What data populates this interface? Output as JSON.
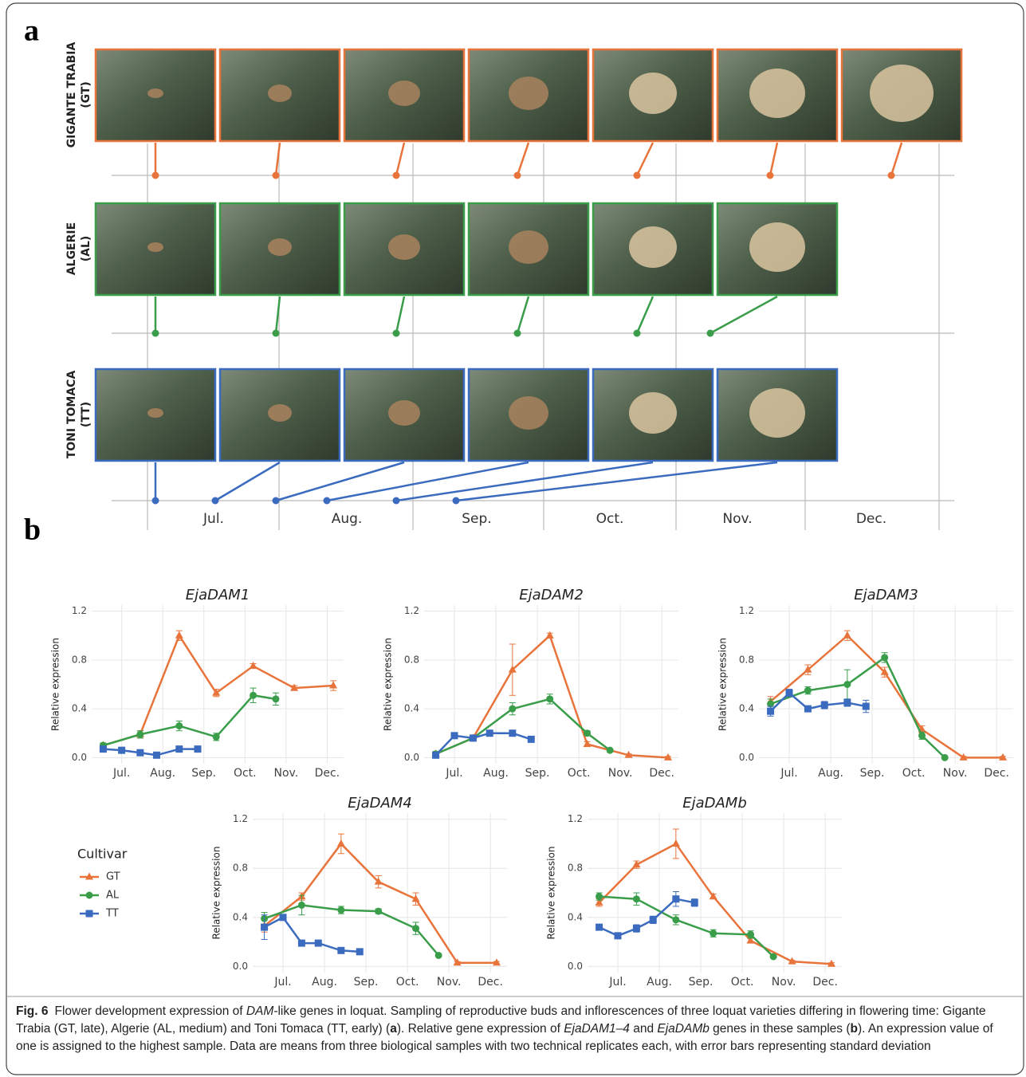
{
  "panel_a": {
    "label": "a",
    "rows": [
      {
        "name": "GIGANTE TRABIA",
        "code": "(GT)"
      },
      {
        "name": "ALGERIE",
        "code": "(AL)"
      },
      {
        "name": "TONI TOMACA",
        "code": "(TT)"
      }
    ],
    "months": [
      "Jul.",
      "Aug.",
      "Sep.",
      "Oct.",
      "Nov.",
      "Dec."
    ]
  },
  "panel_b": {
    "label": "b"
  },
  "legend": {
    "title": "Cultivar",
    "entries": [
      {
        "name": "GT",
        "color": "#e8743b",
        "marker": "triangle"
      },
      {
        "name": "AL",
        "color": "#3a9d4a",
        "marker": "circle"
      },
      {
        "name": "TT",
        "color": "#3b6bbf",
        "marker": "square"
      }
    ]
  },
  "chart_data": [
    {
      "type": "line",
      "title": "EjaDAM1",
      "y_label": "Relative expression",
      "xlim": [
        6.27,
        12.4
      ],
      "ylim": [
        -0.05,
        1.25
      ],
      "xticks": [
        {
          "value": 7,
          "label": "Jul."
        },
        {
          "value": 8,
          "label": "Aug."
        },
        {
          "value": 9,
          "label": "Sep."
        },
        {
          "value": 10,
          "label": "Oct."
        },
        {
          "value": 11,
          "label": "Nov."
        },
        {
          "value": 12,
          "label": "Dec."
        }
      ],
      "yticks": [
        {
          "value": 0,
          "label": "0.0"
        },
        0.4,
        0.8,
        1.2
      ],
      "grid": true,
      "series": [
        {
          "x": [
            6.55,
            7.45,
            8.4,
            9.3,
            10.2,
            11.2,
            12.15
          ],
          "values": [
            0.1,
            0.19,
            1.0,
            0.53,
            0.75,
            0.57,
            0.59
          ],
          "errors": [
            0.02,
            0.03,
            0.04,
            0.03,
            0.02,
            0.02,
            0.04
          ]
        },
        {
          "x": [
            6.55,
            7.45,
            8.4,
            9.3,
            10.2,
            10.75
          ],
          "values": [
            0.1,
            0.19,
            0.26,
            0.17,
            0.51,
            0.48
          ],
          "errors": [
            0.02,
            0.03,
            0.04,
            0.03,
            0.06,
            0.05
          ]
        },
        {
          "x": [
            6.55,
            7.0,
            7.45,
            7.85,
            8.4,
            8.85
          ],
          "values": [
            0.07,
            0.06,
            0.04,
            0.02,
            0.07,
            0.07
          ],
          "errors": [
            0.01,
            0.01,
            0.01,
            0.01,
            0.01,
            0.01
          ]
        }
      ]
    },
    {
      "type": "line",
      "title": "EjaDAM2",
      "y_label": "Relative expression",
      "xlim": [
        6.27,
        12.4
      ],
      "ylim": [
        -0.05,
        1.25
      ],
      "xticks": [
        {
          "value": 7,
          "label": "Jul."
        },
        {
          "value": 8,
          "label": "Aug."
        },
        {
          "value": 9,
          "label": "Sep."
        },
        {
          "value": 10,
          "label": "Oct."
        },
        {
          "value": 11,
          "label": "Nov."
        },
        {
          "value": 12,
          "label": "Dec."
        }
      ],
      "yticks": [
        {
          "value": 0,
          "label": "0.0"
        },
        0.4,
        0.8,
        1.2
      ],
      "grid": true,
      "series": [
        {
          "x": [
            6.55,
            7.45,
            8.4,
            9.3,
            10.2,
            11.2,
            12.15
          ],
          "values": [
            0.03,
            0.16,
            0.72,
            1.0,
            0.11,
            0.02,
            0.0
          ],
          "errors": [
            0.02,
            0.02,
            0.21,
            0.02,
            0.02,
            0.01,
            0.01
          ]
        },
        {
          "x": [
            6.55,
            7.45,
            8.4,
            9.3,
            10.2,
            10.75
          ],
          "values": [
            0.03,
            0.16,
            0.4,
            0.48,
            0.2,
            0.06
          ],
          "errors": [
            0.02,
            0.02,
            0.05,
            0.04,
            0.02,
            0.01
          ]
        },
        {
          "x": [
            6.55,
            7.0,
            7.45,
            7.85,
            8.4,
            8.85
          ],
          "values": [
            0.02,
            0.18,
            0.16,
            0.2,
            0.2,
            0.15
          ],
          "errors": [
            0.02,
            0.02,
            0.02,
            0.02,
            0.02,
            0.02
          ]
        }
      ]
    },
    {
      "type": "line",
      "title": "EjaDAM3",
      "y_label": "Relative expression",
      "xlim": [
        6.27,
        12.4
      ],
      "ylim": [
        -0.05,
        1.25
      ],
      "xticks": [
        {
          "value": 7,
          "label": "Jul."
        },
        {
          "value": 8,
          "label": "Aug."
        },
        {
          "value": 9,
          "label": "Sep."
        },
        {
          "value": 10,
          "label": "Oct."
        },
        {
          "value": 11,
          "label": "Nov."
        },
        {
          "value": 12,
          "label": "Dec."
        }
      ],
      "yticks": [
        {
          "value": 0,
          "label": "0.0"
        },
        0.4,
        0.8,
        1.2
      ],
      "grid": true,
      "series": [
        {
          "x": [
            6.55,
            7.45,
            8.4,
            9.3,
            10.2,
            11.2,
            12.15
          ],
          "values": [
            0.46,
            0.72,
            1.0,
            0.7,
            0.23,
            0.0,
            0.0
          ],
          "errors": [
            0.04,
            0.04,
            0.04,
            0.04,
            0.03,
            0.01,
            0.01
          ]
        },
        {
          "x": [
            6.55,
            7.45,
            8.4,
            9.3,
            10.2,
            10.75
          ],
          "values": [
            0.44,
            0.55,
            0.6,
            0.82,
            0.18,
            0.0
          ],
          "errors": [
            0.04,
            0.03,
            0.12,
            0.04,
            0.03,
            0.01
          ]
        },
        {
          "x": [
            6.55,
            7.0,
            7.45,
            7.85,
            8.4,
            8.85
          ],
          "values": [
            0.38,
            0.53,
            0.4,
            0.43,
            0.45,
            0.42
          ],
          "errors": [
            0.04,
            0.03,
            0.02,
            0.03,
            0.03,
            0.05
          ]
        }
      ]
    },
    {
      "type": "line",
      "title": "EjaDAM4",
      "y_label": "Relative expression",
      "xlim": [
        6.27,
        12.4
      ],
      "ylim": [
        -0.05,
        1.25
      ],
      "xticks": [
        {
          "value": 7,
          "label": "Jul."
        },
        {
          "value": 8,
          "label": "Aug."
        },
        {
          "value": 9,
          "label": "Sep."
        },
        {
          "value": 10,
          "label": "Oct."
        },
        {
          "value": 11,
          "label": "Nov."
        },
        {
          "value": 12,
          "label": "Dec."
        }
      ],
      "yticks": [
        {
          "value": 0,
          "label": "0.0"
        },
        0.4,
        0.8,
        1.2
      ],
      "grid": true,
      "series": [
        {
          "x": [
            6.55,
            7.45,
            8.4,
            9.3,
            10.2,
            11.2,
            12.15
          ],
          "values": [
            0.33,
            0.57,
            1.0,
            0.69,
            0.55,
            0.03,
            0.03
          ],
          "errors": [
            0.05,
            0.03,
            0.08,
            0.05,
            0.05,
            0.01,
            0.01
          ]
        },
        {
          "x": [
            6.55,
            7.45,
            8.4,
            9.3,
            10.2,
            10.75
          ],
          "values": [
            0.39,
            0.5,
            0.46,
            0.45,
            0.31,
            0.09
          ],
          "errors": [
            0.05,
            0.08,
            0.03,
            0.02,
            0.05,
            0.01
          ]
        },
        {
          "x": [
            6.55,
            7.0,
            7.45,
            7.85,
            8.4,
            8.85
          ],
          "values": [
            0.32,
            0.4,
            0.19,
            0.19,
            0.13,
            0.12
          ],
          "errors": [
            0.1,
            0.02,
            0.02,
            0.02,
            0.02,
            0.01
          ]
        }
      ]
    },
    {
      "type": "line",
      "title": "EjaDAMb",
      "y_label": "Relative expression",
      "xlim": [
        6.27,
        12.4
      ],
      "ylim": [
        -0.05,
        1.25
      ],
      "xticks": [
        {
          "value": 7,
          "label": "Jul."
        },
        {
          "value": 8,
          "label": "Aug."
        },
        {
          "value": 9,
          "label": "Sep."
        },
        {
          "value": 10,
          "label": "Oct."
        },
        {
          "value": 11,
          "label": "Nov."
        },
        {
          "value": 12,
          "label": "Dec."
        }
      ],
      "yticks": [
        {
          "value": 0,
          "label": "0.0"
        },
        0.4,
        0.8,
        1.2
      ],
      "grid": true,
      "series": [
        {
          "x": [
            6.55,
            7.45,
            8.4,
            9.3,
            10.2,
            11.2,
            12.15
          ],
          "values": [
            0.52,
            0.83,
            1.0,
            0.57,
            0.21,
            0.04,
            0.02
          ],
          "errors": [
            0.03,
            0.03,
            0.12,
            0.02,
            0.02,
            0.01,
            0.01
          ]
        },
        {
          "x": [
            6.55,
            7.45,
            8.4,
            9.3,
            10.2,
            10.75
          ],
          "values": [
            0.57,
            0.55,
            0.38,
            0.27,
            0.26,
            0.08
          ],
          "errors": [
            0.03,
            0.05,
            0.04,
            0.03,
            0.03,
            0.01
          ]
        },
        {
          "x": [
            6.55,
            7.0,
            7.45,
            7.85,
            8.4,
            8.85
          ],
          "values": [
            0.32,
            0.25,
            0.31,
            0.38,
            0.55,
            0.52
          ],
          "errors": [
            0.02,
            0.02,
            0.03,
            0.03,
            0.06,
            0.03
          ]
        }
      ]
    }
  ],
  "caption": {
    "label": "Fig. 6",
    "parts": [
      {
        "text": "Flower development expression of "
      },
      {
        "text": "DAM",
        "style": "italic"
      },
      {
        "text": "-like genes in loquat. Sampling of reproductive buds and inflorescences of three loquat varieties differing in flowering time: Gigante Trabia (GT, late), Algerie (AL, medium) and Toni Tomaca (TT, early) ("
      },
      {
        "text": "a",
        "style": "bold"
      },
      {
        "text": "). Relative gene expression of "
      },
      {
        "text": "EjaDAM1–4",
        "style": "italic"
      },
      {
        "text": " and "
      },
      {
        "text": "EjaDAMb",
        "style": "italic"
      },
      {
        "text": " genes in these samples ("
      },
      {
        "text": "b",
        "style": "bold"
      },
      {
        "text": "). An expression value of one is assigned to the highest sample. Data are means from three biological samples with two technical replicates each, with error bars representing standard deviation"
      }
    ]
  }
}
